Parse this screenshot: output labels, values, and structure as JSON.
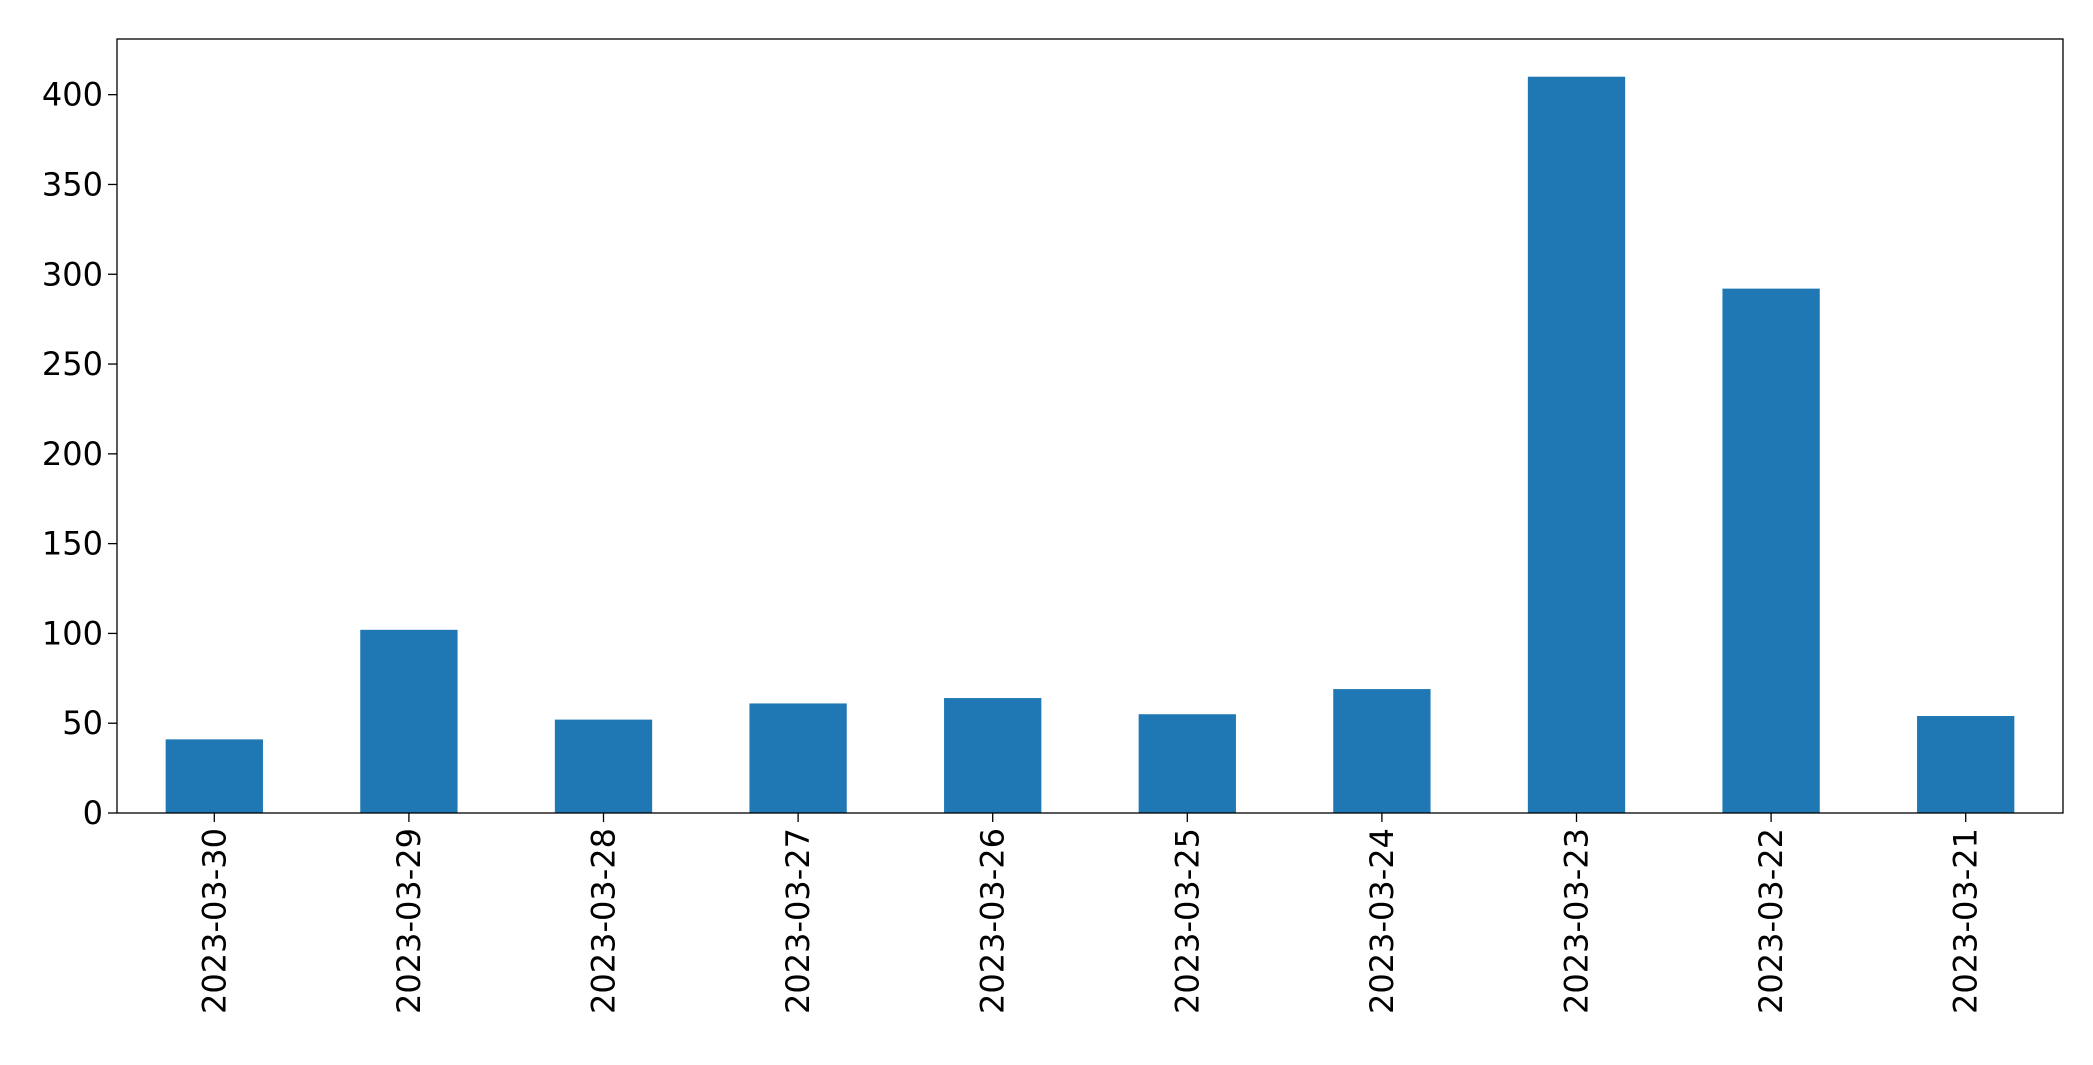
{
  "chart_data": {
    "type": "bar",
    "categories": [
      "2023-03-30",
      "2023-03-29",
      "2023-03-28",
      "2023-03-27",
      "2023-03-26",
      "2023-03-25",
      "2023-03-24",
      "2023-03-23",
      "2023-03-22",
      "2023-03-21"
    ],
    "values": [
      41,
      102,
      52,
      61,
      64,
      55,
      69,
      410,
      292,
      54
    ],
    "color": "#1f77b4",
    "ylim": [
      0,
      431
    ],
    "yticks": [
      0,
      50,
      100,
      150,
      200,
      250,
      300,
      350,
      400
    ],
    "grid": false
  }
}
